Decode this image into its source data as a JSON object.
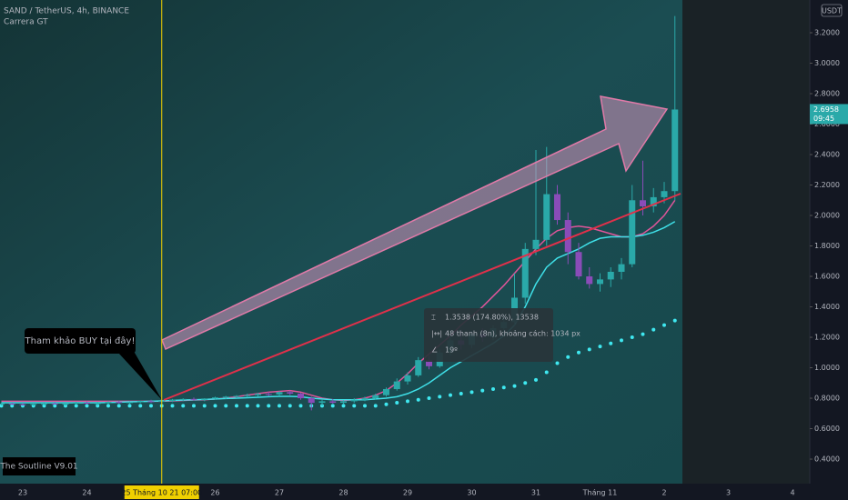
{
  "chart_data": {
    "type": "candlestick",
    "title": "SAND / TetherUS, 4h, BINANCE",
    "subtitle": "Carrera GT",
    "currency": "USDT",
    "countdown": "09:45",
    "categories": [
      null,
      null,
      "23",
      null,
      null,
      null,
      null,
      null,
      "24",
      null,
      null,
      null,
      null,
      null,
      null,
      "25 Tháng 10 21  07:00",
      null,
      null,
      null,
      null,
      "26",
      null,
      null,
      null,
      null,
      null,
      "27",
      null,
      null,
      null,
      null,
      null,
      "28",
      null,
      null,
      null,
      null,
      null,
      "29",
      null,
      null,
      null,
      null,
      null,
      "30",
      null,
      null,
      null,
      null,
      null,
      "31",
      null,
      null,
      null,
      null,
      null,
      "Tháng 11",
      null,
      null,
      null,
      null,
      null,
      "2",
      null,
      null,
      null,
      null,
      null,
      "3",
      null,
      null,
      null,
      null,
      null,
      "4",
      null
    ],
    "crosshair": 15,
    "open": [
      0.76,
      0.765,
      0.76,
      0.758,
      0.762,
      0.766,
      0.76,
      0.764,
      0.77,
      0.765,
      0.768,
      0.775,
      0.77,
      0.774,
      0.78,
      0.776,
      0.782,
      0.79,
      0.795,
      0.79,
      0.798,
      0.805,
      0.81,
      0.815,
      0.82,
      0.828,
      0.825,
      0.84,
      0.83,
      0.8,
      0.77,
      0.78,
      0.77,
      0.78,
      0.79,
      0.8,
      0.82,
      0.86,
      0.91,
      0.95,
      1.05,
      1.01,
      1.1,
      1.18,
      1.15,
      1.22,
      1.2,
      1.26,
      1.3,
      1.46,
      1.78,
      1.84,
      2.14,
      1.97,
      1.76,
      1.6,
      1.55,
      1.58,
      1.63,
      1.68,
      2.1,
      2.06,
      2.12,
      2.16,
      null,
      null,
      null,
      null,
      null,
      null,
      null,
      null,
      null,
      null,
      null,
      null
    ],
    "high": [
      0.77,
      0.77,
      0.768,
      0.765,
      0.77,
      0.772,
      0.768,
      0.775,
      0.778,
      0.772,
      0.78,
      0.782,
      0.778,
      0.785,
      0.79,
      0.785,
      0.795,
      0.8,
      0.805,
      0.8,
      0.81,
      0.815,
      0.82,
      0.83,
      0.835,
      0.84,
      0.845,
      0.85,
      0.835,
      0.81,
      0.79,
      0.795,
      0.785,
      0.8,
      0.81,
      0.83,
      0.87,
      0.93,
      0.97,
      1.07,
      1.08,
      1.12,
      1.22,
      1.25,
      1.24,
      1.26,
      1.28,
      1.35,
      1.62,
      1.82,
      2.43,
      2.45,
      2.2,
      2.02,
      1.82,
      1.66,
      1.62,
      1.66,
      1.72,
      2.2,
      2.36,
      2.18,
      2.22,
      3.31,
      null,
      null,
      null,
      null,
      null,
      null,
      null,
      null,
      null,
      null,
      null,
      null
    ],
    "low": [
      0.755,
      0.755,
      0.752,
      0.75,
      0.755,
      0.758,
      0.752,
      0.758,
      0.76,
      0.755,
      0.762,
      0.765,
      0.76,
      0.768,
      0.77,
      0.77,
      0.775,
      0.78,
      0.785,
      0.78,
      0.79,
      0.795,
      0.8,
      0.805,
      0.81,
      0.815,
      0.815,
      0.82,
      0.79,
      0.72,
      0.75,
      0.765,
      0.76,
      0.77,
      0.78,
      0.79,
      0.81,
      0.85,
      0.89,
      0.94,
      0.99,
      1.0,
      1.08,
      1.12,
      1.13,
      1.17,
      1.18,
      1.22,
      1.28,
      1.42,
      1.74,
      1.8,
      1.94,
      1.68,
      1.58,
      1.52,
      1.5,
      1.53,
      1.58,
      1.66,
      2.0,
      2.02,
      2.08,
      2.1,
      null,
      null,
      null,
      null,
      null,
      null,
      null,
      null,
      null,
      null,
      null,
      null
    ],
    "close": [
      0.765,
      0.76,
      0.758,
      0.762,
      0.766,
      0.76,
      0.764,
      0.77,
      0.765,
      0.768,
      0.775,
      0.77,
      0.774,
      0.78,
      0.776,
      0.782,
      0.79,
      0.795,
      0.79,
      0.798,
      0.805,
      0.81,
      0.815,
      0.82,
      0.828,
      0.825,
      0.84,
      0.83,
      0.8,
      0.77,
      0.78,
      0.77,
      0.78,
      0.79,
      0.8,
      0.82,
      0.86,
      0.91,
      0.95,
      1.05,
      1.01,
      1.1,
      1.18,
      1.15,
      1.22,
      1.2,
      1.26,
      1.3,
      1.46,
      1.78,
      1.84,
      2.14,
      1.97,
      1.76,
      1.6,
      1.55,
      1.58,
      1.63,
      1.68,
      2.1,
      2.06,
      2.12,
      2.16,
      2.6958,
      null,
      null,
      null,
      null,
      null,
      null,
      null,
      null,
      null,
      null,
      null,
      null
    ],
    "up_color": "#2aa9a9",
    "down_color": "#8a4cb8",
    "lines": [
      {
        "style": "line",
        "color": "#e0559a",
        "values": [
          0.78,
          0.78,
          0.78,
          0.78,
          0.78,
          0.78,
          0.78,
          0.78,
          0.78,
          0.78,
          0.78,
          0.78,
          0.78,
          0.78,
          0.78,
          0.78,
          0.782,
          0.785,
          0.788,
          0.79,
          0.795,
          0.8,
          0.81,
          0.82,
          0.83,
          0.84,
          0.845,
          0.85,
          0.84,
          0.82,
          0.8,
          0.79,
          0.785,
          0.79,
          0.8,
          0.82,
          0.85,
          0.9,
          0.96,
          1.03,
          1.09,
          1.15,
          1.21,
          1.28,
          1.34,
          1.4,
          1.47,
          1.54,
          1.62,
          1.7,
          1.78,
          1.85,
          1.9,
          1.92,
          1.93,
          1.92,
          1.9,
          1.88,
          1.86,
          1.86,
          1.88,
          1.93,
          2.0,
          2.1,
          null,
          null,
          null,
          null,
          null,
          null,
          null,
          null,
          null,
          null,
          null,
          null
        ]
      },
      {
        "style": "line",
        "color": "#3fe0e8",
        "values": [
          0.77,
          0.77,
          0.77,
          0.77,
          0.77,
          0.77,
          0.77,
          0.77,
          0.77,
          0.77,
          0.772,
          0.774,
          0.776,
          0.778,
          0.78,
          0.782,
          0.785,
          0.788,
          0.79,
          0.792,
          0.795,
          0.798,
          0.8,
          0.803,
          0.806,
          0.81,
          0.812,
          0.812,
          0.81,
          0.8,
          0.795,
          0.79,
          0.79,
          0.79,
          0.79,
          0.795,
          0.8,
          0.81,
          0.83,
          0.86,
          0.9,
          0.95,
          1.0,
          1.04,
          1.08,
          1.12,
          1.16,
          1.21,
          1.28,
          1.4,
          1.55,
          1.66,
          1.72,
          1.75,
          1.78,
          1.82,
          1.85,
          1.86,
          1.86,
          1.86,
          1.87,
          1.89,
          1.92,
          1.96,
          null,
          null,
          null,
          null,
          null,
          null,
          null,
          null,
          null,
          null,
          null,
          null
        ]
      },
      {
        "style": "dots",
        "color": "#3fe8f0",
        "values": [
          0.75,
          0.75,
          0.75,
          0.75,
          0.75,
          0.75,
          0.75,
          0.75,
          0.75,
          0.75,
          0.75,
          0.75,
          0.75,
          0.75,
          0.75,
          0.75,
          0.75,
          0.75,
          0.75,
          0.75,
          0.75,
          0.75,
          0.75,
          0.75,
          0.75,
          0.75,
          0.75,
          0.75,
          0.75,
          0.75,
          0.75,
          0.75,
          0.75,
          0.75,
          0.75,
          0.75,
          0.76,
          0.77,
          0.78,
          0.79,
          0.8,
          0.81,
          0.82,
          0.83,
          0.84,
          0.85,
          0.86,
          0.87,
          0.88,
          0.9,
          0.92,
          0.97,
          1.03,
          1.07,
          1.1,
          1.12,
          1.14,
          1.16,
          1.18,
          1.2,
          1.22,
          1.25,
          1.28,
          1.31,
          null,
          null,
          null,
          null,
          null,
          null,
          null,
          null,
          null,
          null,
          null,
          null
        ]
      }
    ],
    "ylim": [
      0.239,
      3.415
    ],
    "yticks": [
      {
        "value": 0.4,
        "label": "0.4000"
      },
      {
        "value": 0.6,
        "label": "0.6000"
      },
      {
        "value": 0.8,
        "label": "0.8000"
      },
      {
        "value": 1.0,
        "label": "1.0000"
      },
      {
        "value": 1.2,
        "label": "1.2000"
      },
      {
        "value": 1.4,
        "label": "1.4000"
      },
      {
        "value": 1.6,
        "label": "1.6000"
      },
      {
        "value": 1.8,
        "label": "1.8000"
      },
      {
        "value": 2.0,
        "label": "2.0000"
      },
      {
        "value": 2.2,
        "label": "2.2000"
      },
      {
        "value": 2.4,
        "label": "2.4000"
      },
      {
        "value": 2.6,
        "label": "2.6000"
      },
      {
        "value": 2.8,
        "label": "2.8000"
      },
      {
        "value": 3.0,
        "label": "3.0000"
      },
      {
        "value": 3.2,
        "label": "3.2000"
      }
    ],
    "annotations": {
      "callout": "Tham khảo BUY tại đây!",
      "indicator_label": "The Soutline V9.01",
      "tooltip": [
        "1.3538 (174.80%), 13538",
        "48 thanh (8n), khoảng cách: 1034 px",
        "19º"
      ]
    }
  }
}
